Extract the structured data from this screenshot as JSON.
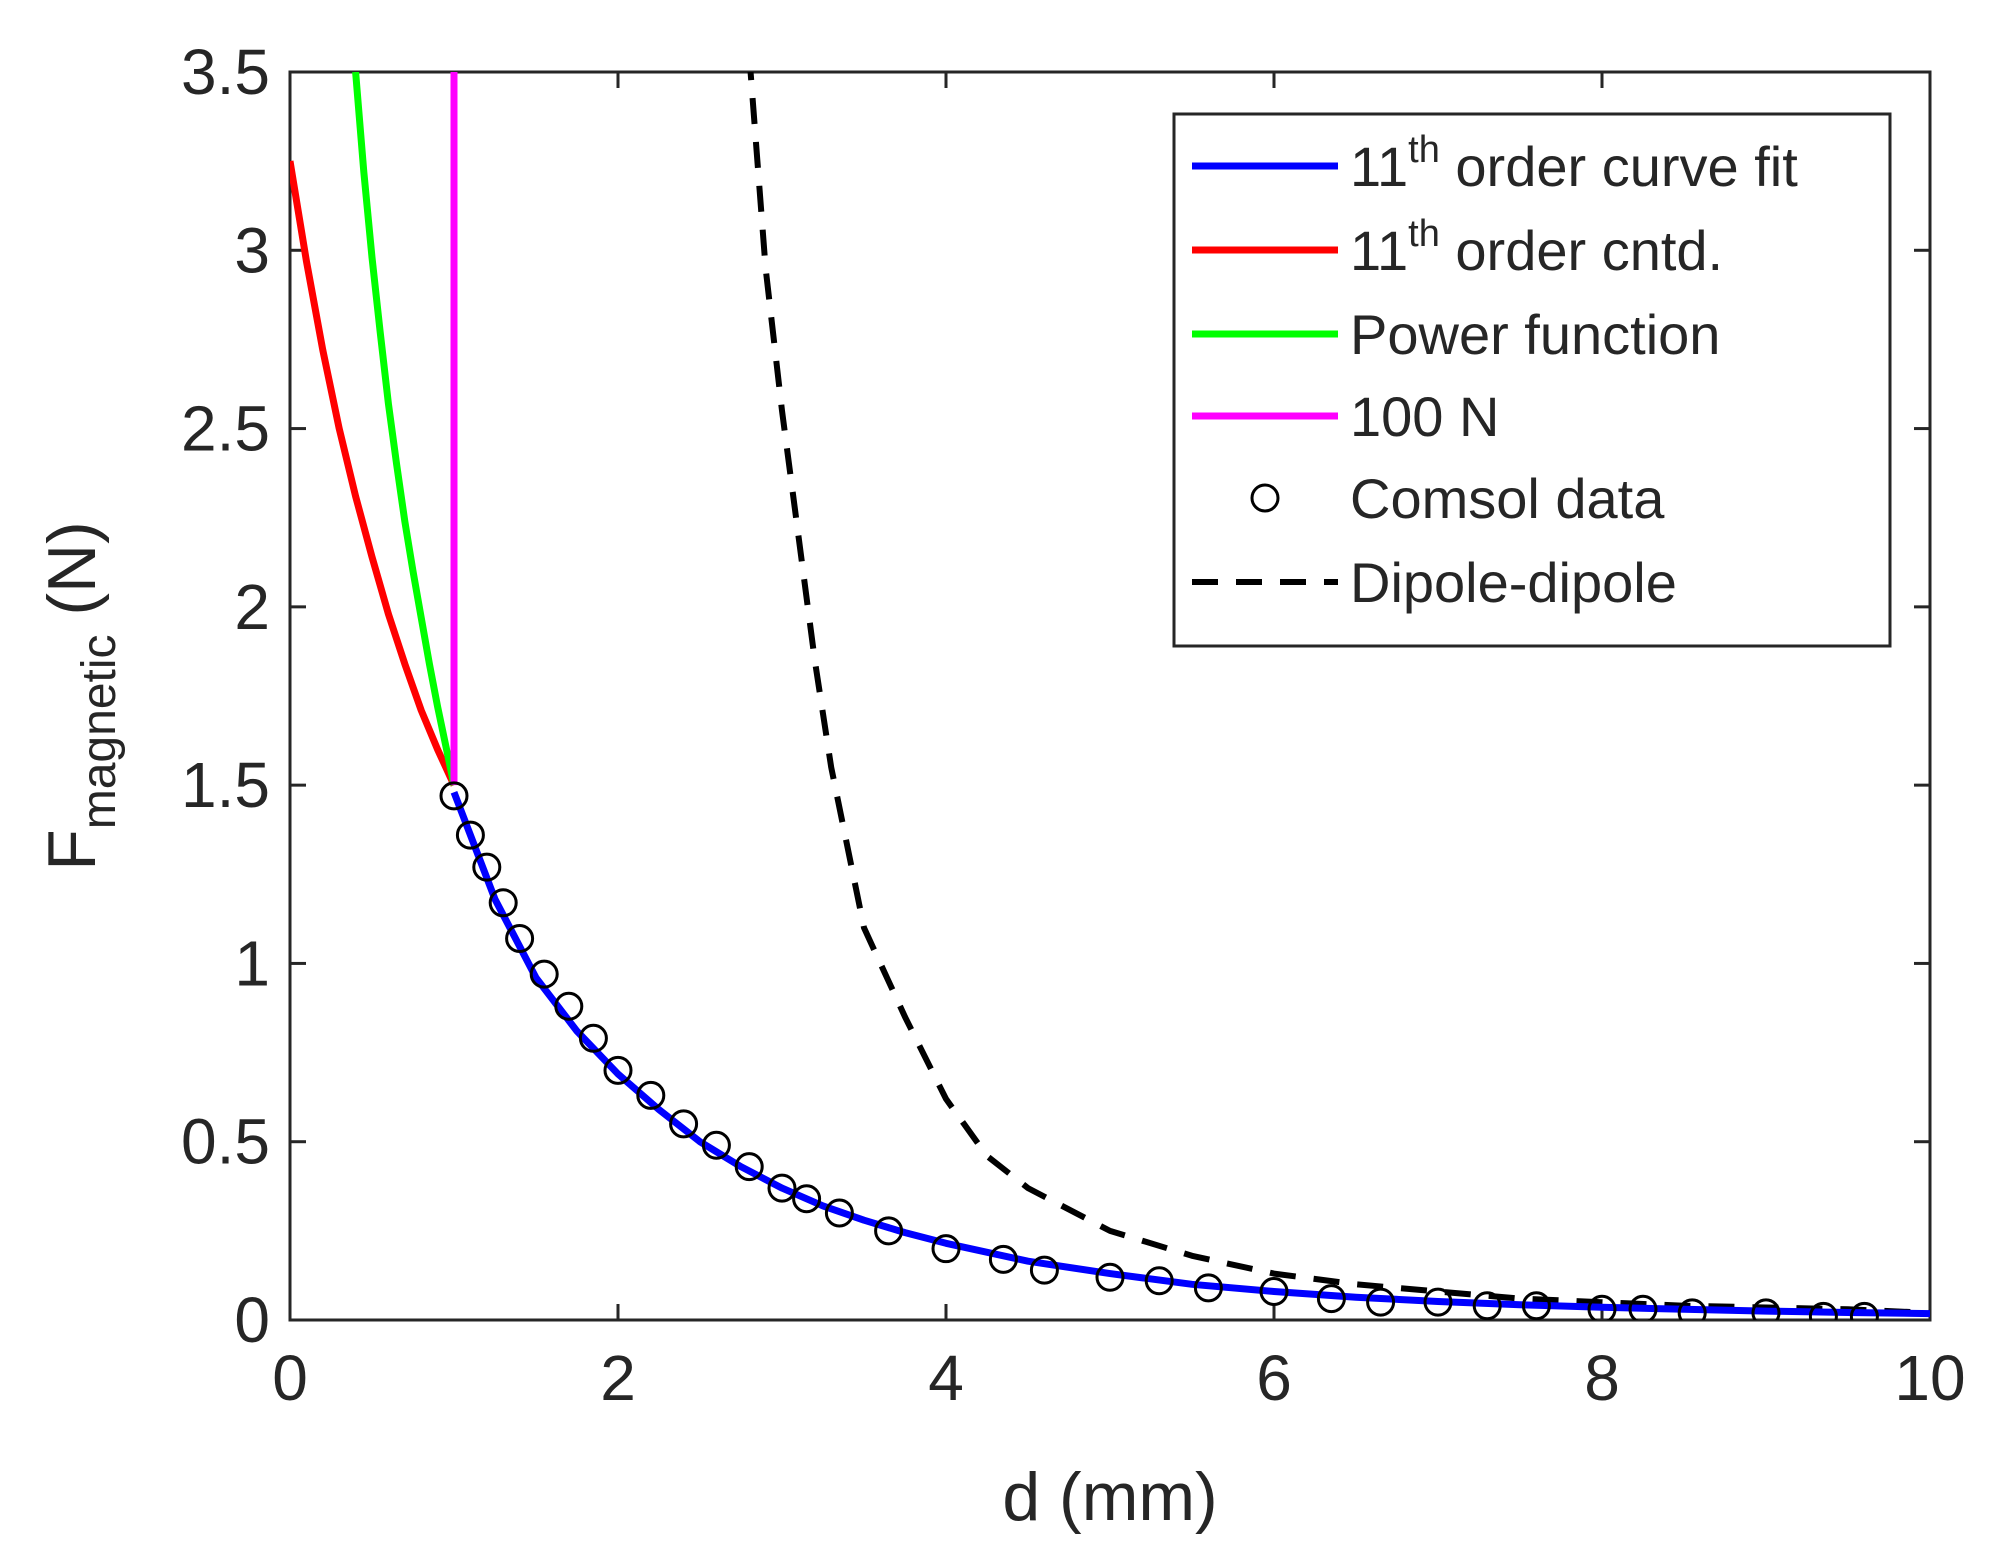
{
  "chart_data": {
    "type": "line",
    "title": "",
    "xlabel": "d (mm)",
    "ylabel": {
      "main": "F",
      "subscript": "magnetic",
      "unit": " (N)"
    },
    "xlim": [
      0,
      10
    ],
    "ylim": [
      0,
      3.5
    ],
    "xticks": [
      0,
      2,
      4,
      6,
      8,
      10
    ],
    "xtick_labels": [
      "0",
      "2",
      "4",
      "6",
      "8",
      "10"
    ],
    "yticks": [
      0,
      0.5,
      1,
      1.5,
      2,
      2.5,
      3,
      3.5
    ],
    "ytick_labels": [
      "0",
      "0.5",
      "1",
      "1.5",
      "2",
      "2.5",
      "3",
      "3.5"
    ],
    "grid": false,
    "legend_position": "top-right",
    "series": [
      {
        "name": "11th order curve fit",
        "legend": {
          "pre": "11",
          "sup": "th",
          "post": " order curve fit"
        },
        "color": "#0000ff",
        "style": "solid",
        "x": [
          1.0,
          1.25,
          1.5,
          1.75,
          2.0,
          2.25,
          2.5,
          2.75,
          3.0,
          3.25,
          3.5,
          3.75,
          4.0,
          4.5,
          5.0,
          5.5,
          6.0,
          6.5,
          7.0,
          7.5,
          8.0,
          8.5,
          9.0,
          9.5,
          10.0
        ],
        "y": [
          1.48,
          1.18,
          0.96,
          0.81,
          0.69,
          0.59,
          0.5,
          0.43,
          0.37,
          0.32,
          0.28,
          0.245,
          0.215,
          0.165,
          0.13,
          0.1,
          0.08,
          0.064,
          0.052,
          0.043,
          0.036,
          0.03,
          0.025,
          0.021,
          0.018
        ]
      },
      {
        "name": "11th order cntd.",
        "legend": {
          "pre": "11",
          "sup": "th",
          "post": " order cntd."
        },
        "color": "#ff0000",
        "style": "solid",
        "x": [
          0.0,
          0.1,
          0.2,
          0.3,
          0.4,
          0.5,
          0.6,
          0.7,
          0.8,
          0.9,
          1.0
        ],
        "y": [
          3.25,
          2.97,
          2.72,
          2.5,
          2.31,
          2.14,
          1.98,
          1.84,
          1.71,
          1.6,
          1.5
        ]
      },
      {
        "name": "Power function",
        "legend": {
          "pre": "Power function",
          "sup": "",
          "post": ""
        },
        "color": "#00ff00",
        "style": "solid",
        "x": [
          0.4,
          0.45,
          0.5,
          0.55,
          0.6,
          0.65,
          0.7,
          0.75,
          0.8,
          0.85,
          0.9,
          0.95,
          1.0
        ],
        "y": [
          3.5,
          3.22,
          2.98,
          2.77,
          2.57,
          2.4,
          2.24,
          2.1,
          1.97,
          1.84,
          1.72,
          1.61,
          1.5
        ]
      },
      {
        "name": "100 N",
        "legend": {
          "pre": "100 N",
          "sup": "",
          "post": ""
        },
        "color": "#ff00ff",
        "style": "solid",
        "x": [
          1.0,
          1.0
        ],
        "y": [
          1.5,
          3.5
        ]
      },
      {
        "name": "Comsol data",
        "legend": {
          "pre": "Comsol data",
          "sup": "",
          "post": ""
        },
        "color": "#000000",
        "style": "marker-circle",
        "x": [
          1.0,
          1.1,
          1.2,
          1.3,
          1.4,
          1.55,
          1.7,
          1.85,
          2.0,
          2.2,
          2.4,
          2.6,
          2.8,
          3.0,
          3.15,
          3.35,
          3.65,
          4.0,
          4.35,
          4.6,
          5.0,
          5.3,
          5.6,
          6.0,
          6.35,
          6.65,
          7.0,
          7.3,
          7.6,
          8.0,
          8.25,
          8.55,
          9.0,
          9.35,
          9.6
        ],
        "y": [
          1.47,
          1.36,
          1.27,
          1.17,
          1.07,
          0.97,
          0.88,
          0.79,
          0.7,
          0.63,
          0.55,
          0.49,
          0.43,
          0.37,
          0.34,
          0.3,
          0.25,
          0.2,
          0.17,
          0.14,
          0.12,
          0.11,
          0.09,
          0.08,
          0.06,
          0.05,
          0.05,
          0.04,
          0.04,
          0.03,
          0.03,
          0.02,
          0.02,
          0.01,
          0.01
        ]
      },
      {
        "name": "Dipole-dipole",
        "legend": {
          "pre": "Dipole-dipole",
          "sup": "",
          "post": ""
        },
        "color": "#000000",
        "style": "dashed",
        "x": [
          2.8,
          2.9,
          3.0,
          3.1,
          3.2,
          3.3,
          3.5,
          3.75,
          4.0,
          4.25,
          4.5,
          5.0,
          5.5,
          6.0,
          6.5,
          7.0,
          7.5,
          8.0,
          8.5,
          9.0,
          9.5,
          10.0
        ],
        "y": [
          3.55,
          2.95,
          2.55,
          2.2,
          1.85,
          1.55,
          1.1,
          0.85,
          0.62,
          0.46,
          0.37,
          0.25,
          0.18,
          0.13,
          0.1,
          0.08,
          0.06,
          0.05,
          0.04,
          0.035,
          0.03,
          0.02
        ]
      }
    ]
  }
}
